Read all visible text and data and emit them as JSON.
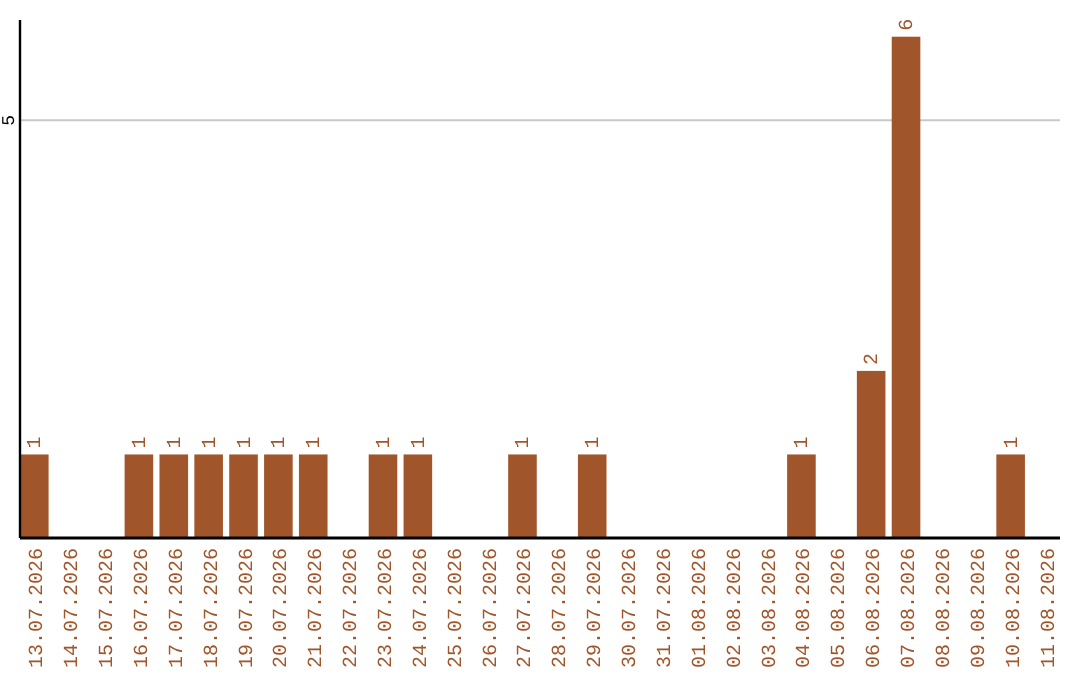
{
  "chart_data": {
    "type": "bar",
    "categories": [
      "13.07.2026",
      "14.07.2026",
      "15.07.2026",
      "16.07.2026",
      "17.07.2026",
      "18.07.2026",
      "19.07.2026",
      "20.07.2026",
      "21.07.2026",
      "22.07.2026",
      "23.07.2026",
      "24.07.2026",
      "25.07.2026",
      "26.07.2026",
      "27.07.2026",
      "28.07.2026",
      "29.07.2026",
      "30.07.2026",
      "31.07.2026",
      "01.08.2026",
      "02.08.2026",
      "03.08.2026",
      "04.08.2026",
      "05.08.2026",
      "06.08.2026",
      "07.08.2026",
      "08.08.2026",
      "09.08.2026",
      "10.08.2026",
      "11.08.2026"
    ],
    "values": [
      1,
      0,
      0,
      1,
      1,
      1,
      1,
      1,
      1,
      0,
      1,
      1,
      0,
      0,
      1,
      0,
      1,
      0,
      0,
      0,
      0,
      0,
      1,
      0,
      2,
      6,
      0,
      0,
      1,
      0
    ],
    "value_labels": [
      "1",
      null,
      null,
      "1",
      "1",
      "1",
      "1",
      "1",
      "1",
      null,
      "1",
      "1",
      null,
      null,
      "1",
      null,
      "1",
      null,
      null,
      null,
      null,
      null,
      "1",
      null,
      "2",
      "6",
      null,
      null,
      "1",
      null
    ],
    "color": "#a0562a",
    "ylim": [
      0,
      6.2
    ],
    "yticks": [
      5
    ],
    "grid": "y"
  }
}
